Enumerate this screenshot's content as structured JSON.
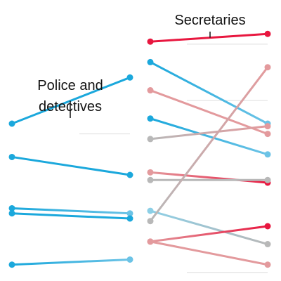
{
  "chart_data": [
    {
      "type": "line",
      "subtype": "slope",
      "panel": "left",
      "ylim": [
        0,
        100
      ],
      "grid": true,
      "gridlines": [
        56
      ],
      "annotation": {
        "lines": [
          "Police and",
          "detectives"
        ],
        "series_index": 0
      },
      "series": [
        {
          "values": [
            60,
            78
          ],
          "start_color": "#1ba8dc",
          "end_color": "#1ba8dc"
        },
        {
          "values": [
            47,
            40
          ],
          "start_color": "#1ba8dc",
          "end_color": "#1ba8dc"
        },
        {
          "values": [
            27,
            25
          ],
          "start_color": "#1ba8dc",
          "end_color": "#6cc3e6"
        },
        {
          "values": [
            25,
            23
          ],
          "start_color": "#1ba8dc",
          "end_color": "#1ba8dc"
        },
        {
          "values": [
            5,
            7
          ],
          "start_color": "#1ba8dc",
          "end_color": "#6cc3e6"
        }
      ]
    },
    {
      "type": "line",
      "subtype": "slope",
      "panel": "right",
      "ylim": [
        0,
        100
      ],
      "grid": true,
      "gridlines": [
        91,
        69,
        38,
        2
      ],
      "annotation": {
        "lines": [
          "Secretaries"
        ],
        "series_index": 0
      },
      "series": [
        {
          "values": [
            92,
            95
          ],
          "start_color": "#e8173f",
          "end_color": "#e8173f"
        },
        {
          "values": [
            84,
            60
          ],
          "start_color": "#1ba8dc",
          "end_color": "#6cc3e6"
        },
        {
          "values": [
            73,
            56
          ],
          "start_color": "#e39a9d",
          "end_color": "#e39a9d"
        },
        {
          "values": [
            62,
            48
          ],
          "start_color": "#1ba8dc",
          "end_color": "#6cc3e6"
        },
        {
          "values": [
            54,
            59
          ],
          "start_color": "#b8b8b8",
          "end_color": "#e39a9d"
        },
        {
          "values": [
            41,
            37
          ],
          "start_color": "#e39a9d",
          "end_color": "#e8173f"
        },
        {
          "values": [
            38,
            38
          ],
          "start_color": "#b8b8b8",
          "end_color": "#b8b8b8"
        },
        {
          "values": [
            26,
            13
          ],
          "start_color": "#8ccfe6",
          "end_color": "#b8b8b8"
        },
        {
          "values": [
            22,
            82
          ],
          "start_color": "#b8b8b8",
          "end_color": "#e39a9d"
        },
        {
          "values": [
            14,
            20
          ],
          "start_color": "#e39a9d",
          "end_color": "#e8173f"
        },
        {
          "values": [
            14,
            5
          ],
          "start_color": "#e39a9d",
          "end_color": "#e39a9d"
        }
      ]
    }
  ]
}
